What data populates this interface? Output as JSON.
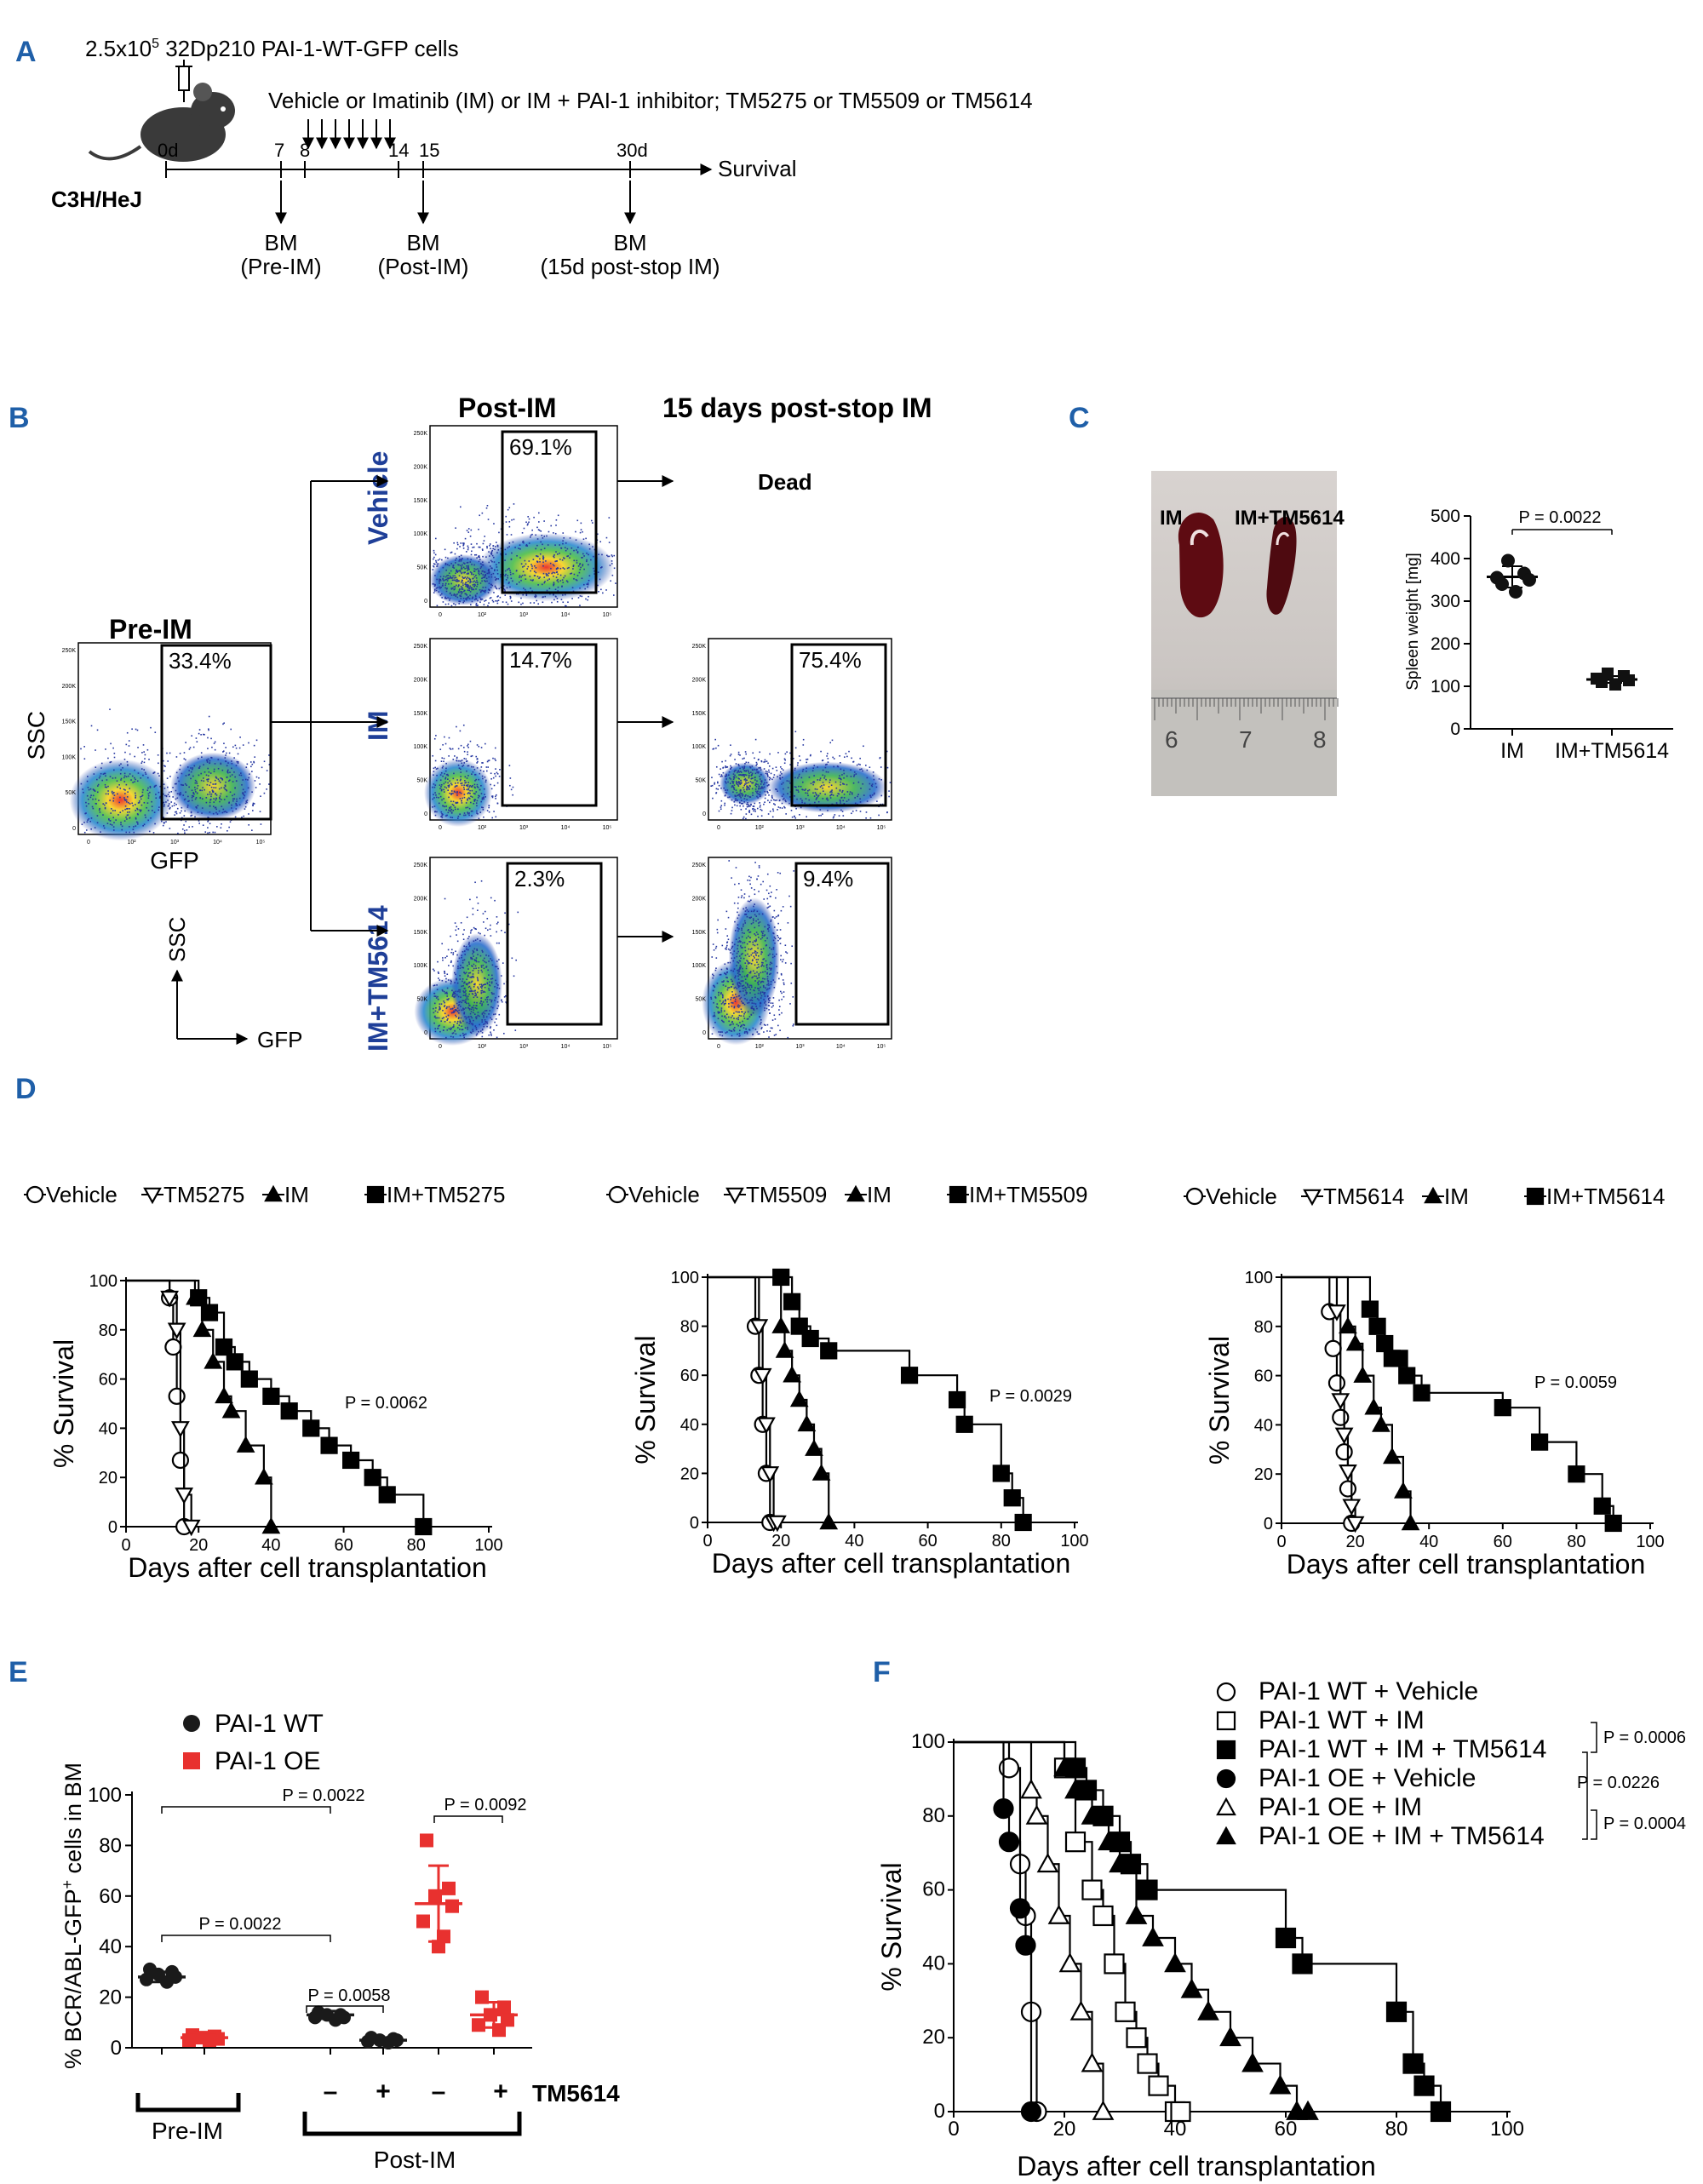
{
  "panels": {
    "A": "A",
    "B": "B",
    "C": "C",
    "D": "D",
    "E": "E",
    "F": "F"
  },
  "panelA": {
    "cells_pre": "2.5x10",
    "cells_exp": "5",
    "cells_post": " 32Dp210 PAI-1-WT-GFP cells",
    "strain": "C3H/HeJ",
    "treatment": "Vehicle or Imatinib (IM) or IM + PAI-1 inhibitor; TM5275 or TM5509 or TM5614",
    "survival": "Survival",
    "days": [
      "0d",
      "7",
      "8",
      "14",
      "15",
      "30d"
    ],
    "bm": [
      {
        "l1": "BM",
        "l2": "(Pre-IM)"
      },
      {
        "l1": "BM",
        "l2": "(Post-IM)"
      },
      {
        "l1": "BM",
        "l2": "(15d post-stop IM)"
      }
    ]
  },
  "panelB": {
    "post_im": "Post-IM",
    "post_stop": "15 days post-stop IM",
    "pre_im": "Pre-IM",
    "dead": "Dead",
    "ssc": "SSC",
    "gfp": "GFP",
    "rows": [
      "Vehicle",
      "IM",
      "IM+TM5614"
    ],
    "pcts": {
      "pre": "33.4%",
      "veh": "69.1%",
      "im": "14.7%",
      "tm": "2.3%",
      "im15": "75.4%",
      "tm15": "9.4%"
    },
    "yticks": [
      "250K",
      "200K",
      "150K",
      "100K",
      "50K",
      "0"
    ],
    "xticks": [
      "0",
      "10²",
      "10³",
      "10⁴",
      "10⁵"
    ]
  },
  "panelC": {
    "photo_labels": [
      "IM",
      "IM+TM5614"
    ],
    "ruler": [
      "6",
      "7",
      "8"
    ],
    "pval": "P = 0.0022",
    "chart_data": {
      "type": "scatter",
      "ylabel": "Spleen weight [mg]",
      "categories": [
        "IM",
        "IM+TM5614"
      ],
      "ylim": [
        0,
        500
      ],
      "yticks": [
        "0",
        "100",
        "200",
        "300",
        "400",
        "500"
      ],
      "means": [
        357,
        116
      ],
      "sd": [
        25,
        8
      ],
      "points": [
        [
          395,
          365,
          355,
          350,
          340,
          322
        ],
        [
          130,
          124,
          118,
          114,
          110,
          104
        ]
      ]
    }
  },
  "panelD": {
    "xlabel": "Days after cell transplantation",
    "ylabel": "% Survival",
    "xticks": [
      "0",
      "20",
      "40",
      "60",
      "80",
      "100"
    ],
    "yticks": [
      "0",
      "20",
      "40",
      "60",
      "80",
      "100"
    ],
    "plots": [
      {
        "legend": [
          "Vehicle",
          "TM5275",
          "IM",
          "IM+TM5275"
        ],
        "pval": "P = 0.0062",
        "chart_data": {
          "type": "line",
          "series": [
            {
              "name": "Vehicle",
              "x": [
                0,
                12,
                13,
                14,
                15,
                16
              ],
              "y": [
                100,
                93,
                73,
                53,
                27,
                0
              ]
            },
            {
              "name": "TM5275",
              "x": [
                0,
                12,
                14,
                15,
                16,
                18
              ],
              "y": [
                100,
                93,
                80,
                40,
                13,
                0
              ]
            },
            {
              "name": "IM",
              "x": [
                0,
                19,
                21,
                24,
                27,
                29,
                33,
                38,
                40
              ],
              "y": [
                100,
                93,
                80,
                67,
                53,
                47,
                33,
                20,
                0
              ]
            },
            {
              "name": "IM+TM5275",
              "x": [
                0,
                20,
                23,
                27,
                30,
                34,
                40,
                45,
                51,
                56,
                62,
                68,
                72,
                82
              ],
              "y": [
                100,
                93,
                87,
                73,
                67,
                60,
                53,
                47,
                40,
                33,
                27,
                20,
                13,
                0
              ]
            }
          ]
        }
      },
      {
        "legend": [
          "Vehicle",
          "TM5509",
          "IM",
          "IM+TM5509"
        ],
        "pval": "P = 0.0029",
        "chart_data": {
          "type": "line",
          "series": [
            {
              "name": "Vehicle",
              "x": [
                0,
                13,
                14,
                15,
                16,
                17
              ],
              "y": [
                100,
                80,
                60,
                40,
                20,
                0
              ]
            },
            {
              "name": "TM5509",
              "x": [
                0,
                14,
                15,
                16,
                17,
                18,
                19
              ],
              "y": [
                100,
                80,
                60,
                40,
                20,
                0,
                0
              ]
            },
            {
              "name": "IM",
              "x": [
                0,
                20,
                21,
                23,
                25,
                27,
                29,
                31,
                33
              ],
              "y": [
                100,
                80,
                70,
                60,
                50,
                40,
                30,
                20,
                0
              ]
            },
            {
              "name": "IM+TM5509",
              "x": [
                0,
                20,
                23,
                25,
                28,
                33,
                55,
                68,
                70,
                80,
                83,
                86
              ],
              "y": [
                100,
                100,
                90,
                80,
                75,
                70,
                60,
                50,
                40,
                20,
                10,
                0
              ]
            }
          ]
        }
      },
      {
        "legend": [
          "Vehicle",
          "TM5614",
          "IM",
          "IM+TM5614"
        ],
        "pval": "P = 0.0059",
        "chart_data": {
          "type": "line",
          "series": [
            {
              "name": "Vehicle",
              "x": [
                0,
                13,
                14,
                15,
                16,
                17,
                18,
                19
              ],
              "y": [
                100,
                86,
                71,
                57,
                43,
                29,
                14,
                0
              ]
            },
            {
              "name": "TM5614",
              "x": [
                0,
                15,
                16,
                17,
                18,
                19,
                20
              ],
              "y": [
                100,
                86,
                50,
                36,
                21,
                7,
                0
              ]
            },
            {
              "name": "IM",
              "x": [
                0,
                18,
                20,
                22,
                25,
                27,
                30,
                33,
                35
              ],
              "y": [
                100,
                80,
                73,
                60,
                47,
                40,
                27,
                13,
                0
              ]
            },
            {
              "name": "IM+TM5614",
              "x": [
                0,
                24,
                26,
                28,
                30,
                32,
                34,
                38,
                60,
                70,
                80,
                87,
                90
              ],
              "y": [
                100,
                87,
                80,
                73,
                67,
                67,
                60,
                53,
                47,
                33,
                20,
                7,
                0
              ]
            }
          ]
        }
      }
    ]
  },
  "panelE": {
    "legend": [
      "PAI-1 WT",
      "PAI-1 OE"
    ],
    "colors": {
      "wt": "#1a1a1a",
      "oe": "#e8312f"
    },
    "ylabel": "% BCR/ABL-GFP",
    "ylabel_sup": "+",
    "ylabel_end": " cells in BM",
    "yticks": [
      "0",
      "20",
      "40",
      "60",
      "80",
      "100"
    ],
    "signs": [
      "–",
      "+",
      "–",
      "+"
    ],
    "tm": "TM5614",
    "pre": "Pre-IM",
    "post": "Post-IM",
    "pvals": [
      "P = 0.0022",
      "P = 0.0022",
      "P = 0.0058",
      "P = 0.0092"
    ],
    "chart_data": {
      "type": "scatter",
      "ylim": [
        0,
        100
      ],
      "groups": [
        {
          "name": "Pre-IM WT",
          "mean": 28,
          "sd": 2,
          "points": [
            31,
            30,
            29,
            28,
            27,
            26
          ]
        },
        {
          "name": "Pre-IM OE",
          "mean": 4,
          "sd": 1,
          "points": [
            5,
            4.5,
            4,
            3.5,
            3,
            3
          ]
        },
        {
          "name": "Post-IM WT -TM5614",
          "mean": 13,
          "sd": 1.5,
          "points": [
            14,
            13,
            13,
            12,
            12,
            11
          ]
        },
        {
          "name": "Post-IM WT +TM5614",
          "mean": 3,
          "sd": 0.5,
          "points": [
            4,
            3.5,
            3,
            3,
            2.5,
            2
          ]
        },
        {
          "name": "Post-IM OE -TM5614",
          "mean": 57,
          "sd": 15,
          "points": [
            82,
            63,
            60,
            56,
            50,
            44,
            40
          ]
        },
        {
          "name": "Post-IM OE +TM5614",
          "mean": 13,
          "sd": 5,
          "points": [
            20,
            16,
            13,
            11,
            9,
            7
          ]
        }
      ]
    }
  },
  "panelF": {
    "legend": [
      "PAI-1 WT + Vehicle",
      "PAI-1 WT + IM",
      "PAI-1 WT + IM + TM5614",
      "PAI-1 OE + Vehicle",
      "PAI-1 OE + IM",
      "PAI-1 OE + IM + TM5614"
    ],
    "pvals": [
      "P = 0.0006",
      "P = 0.0226",
      "P = 0.0004"
    ],
    "xlabel": "Days after cell transplantation",
    "ylabel": "% Survival",
    "xticks": [
      "0",
      "20",
      "40",
      "60",
      "80",
      "100"
    ],
    "yticks": [
      "0",
      "20",
      "40",
      "60",
      "80",
      "100"
    ],
    "chart_data": {
      "type": "line",
      "series": [
        {
          "name": "PAI-1 WT + Vehicle",
          "x": [
            0,
            10,
            12,
            13,
            14,
            15
          ],
          "y": [
            100,
            93,
            67,
            53,
            27,
            0
          ]
        },
        {
          "name": "PAI-1 WT + IM",
          "x": [
            0,
            20,
            22,
            25,
            27,
            29,
            31,
            33,
            35,
            37,
            40,
            41
          ],
          "y": [
            100,
            93,
            73,
            60,
            53,
            40,
            27,
            20,
            13,
            7,
            0,
            0
          ]
        },
        {
          "name": "PAI-1 WT + IM + TM5614",
          "x": [
            0,
            22,
            24,
            27,
            30,
            32,
            35,
            60,
            63,
            80,
            83,
            85,
            88
          ],
          "y": [
            100,
            93,
            87,
            80,
            73,
            67,
            60,
            47,
            40,
            27,
            13,
            7,
            0
          ]
        },
        {
          "name": "PAI-1 OE + Vehicle",
          "x": [
            0,
            9,
            10,
            12,
            13,
            14
          ],
          "y": [
            100,
            82,
            73,
            55,
            45,
            0
          ]
        },
        {
          "name": "PAI-1 OE + IM",
          "x": [
            0,
            14,
            15,
            17,
            19,
            21,
            23,
            25,
            27
          ],
          "y": [
            100,
            87,
            80,
            67,
            53,
            40,
            27,
            13,
            0
          ]
        },
        {
          "name": "PAI-1 OE + IM + TM5614",
          "x": [
            0,
            20,
            22,
            25,
            28,
            30,
            33,
            36,
            40,
            43,
            46,
            50,
            54,
            59,
            62,
            64
          ],
          "y": [
            100,
            93,
            87,
            80,
            73,
            67,
            53,
            47,
            40,
            33,
            27,
            20,
            13,
            7,
            0,
            0
          ]
        }
      ]
    }
  }
}
